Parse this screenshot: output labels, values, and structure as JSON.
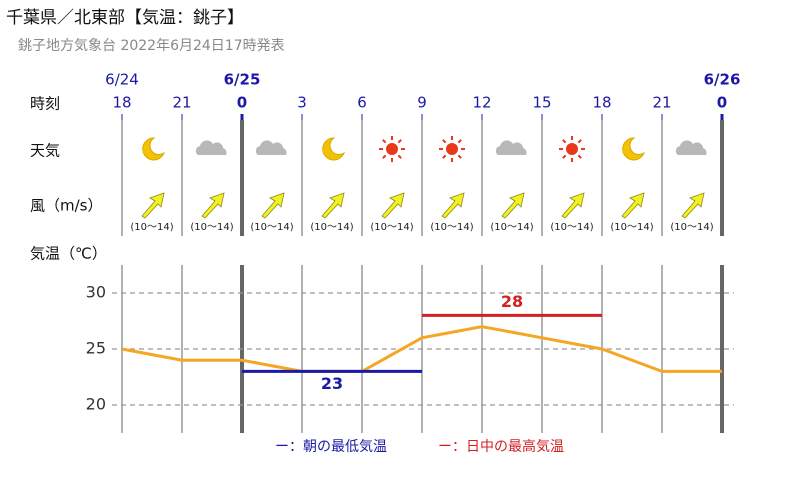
{
  "title": "千葉県／北東部【気温：銚子】",
  "subtitle": "銚子地方気象台 2022年6月24日17時発表",
  "row_labels": {
    "time": "時刻",
    "weather": "天気",
    "wind": "風（m/s）",
    "temp": "気温（℃）"
  },
  "wind_ranges": [
    "(10〜14)",
    "(10〜14)",
    "(10〜14)",
    "(10〜14)",
    "(10〜14)",
    "(10〜14)",
    "(10〜14)",
    "(10〜14)",
    "(10〜14)",
    "(10〜14)"
  ],
  "chart_data": {
    "type": "line",
    "categories": [
      18,
      21,
      0,
      3,
      6,
      9,
      12,
      15,
      18,
      21,
      0
    ],
    "dates": [
      "6/24",
      null,
      "6/25",
      null,
      null,
      null,
      null,
      null,
      null,
      null,
      "6/26"
    ],
    "values": [
      25,
      24,
      24,
      23,
      23,
      26,
      27,
      26,
      25,
      23,
      23
    ],
    "color": "#f5a623",
    "series": [
      {
        "name": "ー：朝の最低気温",
        "color": "#1a1aa6",
        "values": [
          null,
          null,
          23,
          23,
          23,
          23,
          null,
          null,
          null,
          null,
          null
        ]
      },
      {
        "name": "ー：日中の最高気温",
        "color": "#d42020",
        "values": [
          null,
          null,
          null,
          null,
          null,
          28,
          28,
          28,
          28,
          null,
          null
        ]
      }
    ],
    "ylim": [
      17.5,
      32.5
    ],
    "yticks": [
      20,
      25,
      30
    ],
    "grid": true
  }
}
